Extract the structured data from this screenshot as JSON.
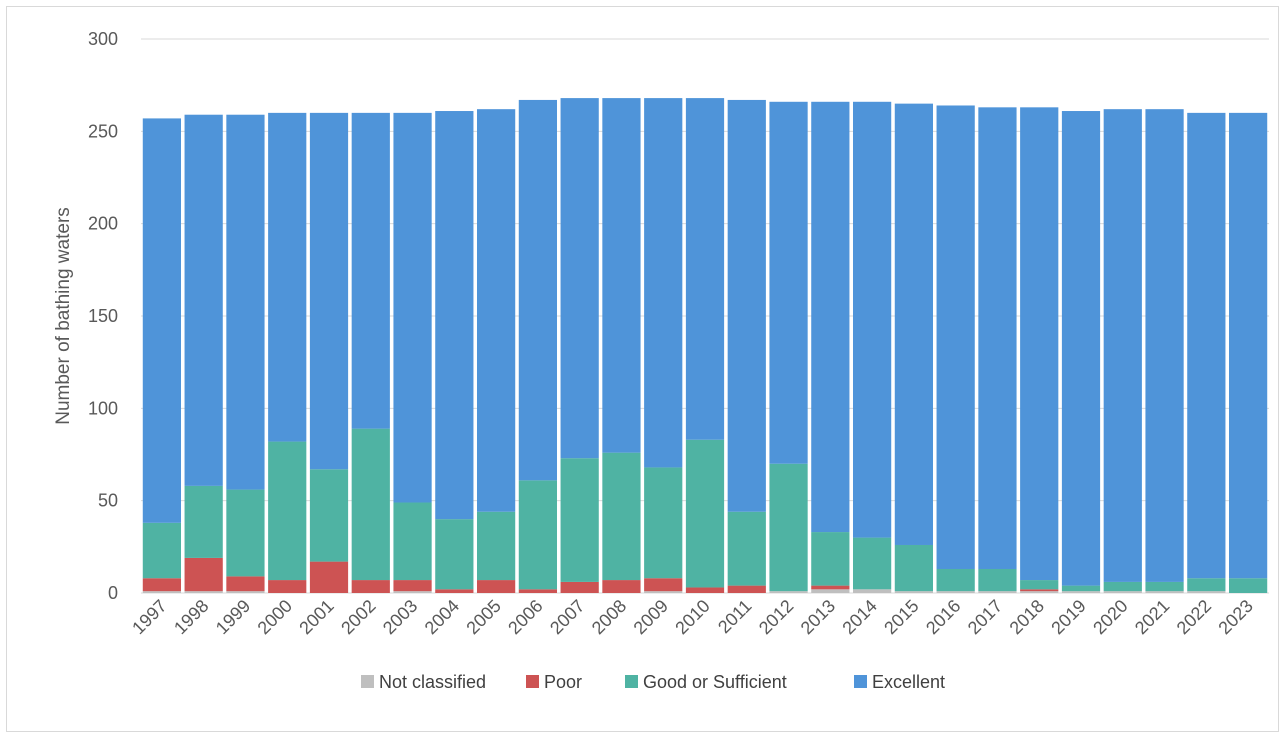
{
  "chart_data": {
    "type": "bar",
    "stacked": true,
    "title": "",
    "xlabel": "",
    "ylabel": "Number of bathing waters",
    "ylim": [
      0,
      300
    ],
    "yticks": [
      0,
      50,
      100,
      150,
      200,
      250,
      300
    ],
    "grid": true,
    "legend_position": "bottom",
    "categories": [
      "1997",
      "1998",
      "1999",
      "2000",
      "2001",
      "2002",
      "2003",
      "2004",
      "2005",
      "2006",
      "2007",
      "2008",
      "2009",
      "2010",
      "2011",
      "2012",
      "2013",
      "2014",
      "2015",
      "2016",
      "2017",
      "2018",
      "2019",
      "2020",
      "2021",
      "2022",
      "2023"
    ],
    "series": [
      {
        "name": "Not classified",
        "color": "#bfbfbf",
        "values": [
          1,
          1,
          1,
          0,
          0,
          0,
          1,
          0,
          0,
          0,
          0,
          0,
          1,
          0,
          0,
          1,
          2,
          2,
          1,
          1,
          1,
          1,
          1,
          1,
          1,
          1,
          0
        ]
      },
      {
        "name": "Poor",
        "color": "#cd5353",
        "values": [
          7,
          18,
          8,
          7,
          17,
          7,
          6,
          2,
          7,
          2,
          6,
          7,
          7,
          3,
          4,
          0,
          2,
          0,
          0,
          0,
          0,
          1,
          0,
          0,
          0,
          0,
          0
        ]
      },
      {
        "name": "Good or Sufficient",
        "color": "#4fb3a3",
        "values": [
          30,
          39,
          47,
          75,
          50,
          82,
          42,
          38,
          37,
          59,
          67,
          69,
          60,
          80,
          40,
          69,
          29,
          28,
          25,
          12,
          12,
          5,
          3,
          5,
          5,
          7,
          8
        ]
      },
      {
        "name": "Excellent",
        "color": "#4f94d9",
        "values": [
          219,
          201,
          203,
          178,
          193,
          171,
          211,
          221,
          218,
          206,
          195,
          192,
          200,
          185,
          223,
          196,
          233,
          236,
          239,
          251,
          250,
          256,
          257,
          256,
          256,
          252,
          252
        ]
      }
    ]
  }
}
